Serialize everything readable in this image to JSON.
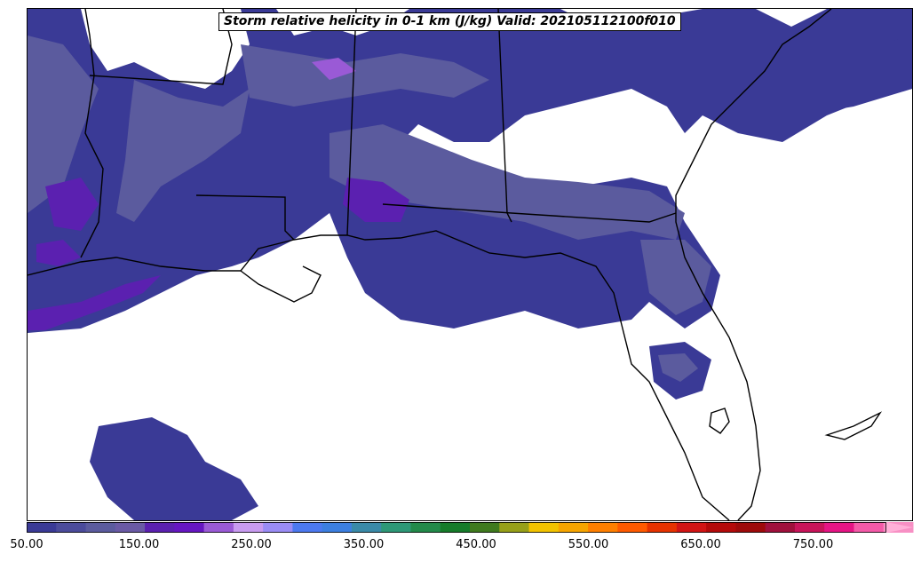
{
  "title": "Storm relative helicity in 0-1 km (J/kg) Valid: 202105112100f010",
  "colorbar": {
    "ticks": [
      "50.00",
      "150.00",
      "250.00",
      "350.00",
      "450.00",
      "550.00",
      "650.00",
      "750.00"
    ],
    "colors": [
      "#3a3a96",
      "#4b4b9b",
      "#5b5b9e",
      "#6a5aa5",
      "#5b20b0",
      "#6616c2",
      "#9a5ad6",
      "#c89bf0",
      "#9a8cf5",
      "#4c79f0",
      "#3c7fe0",
      "#3a8aa8",
      "#2e9877",
      "#238a4a",
      "#167c2a",
      "#3f7a1e",
      "#97a019",
      "#f2c300",
      "#f7a500",
      "#ff7f00",
      "#ff5a00",
      "#e63200",
      "#d21414",
      "#b40a0a",
      "#9e0a0a",
      "#a0103c",
      "#c8145a",
      "#e61485",
      "#f45aa8",
      "#f790c4"
    ],
    "extend": "max",
    "arrow_color": "#ffb0d8"
  },
  "map_style": {
    "background": "#ffffff",
    "boundary_color": "#000000",
    "shading_base": "#3a3a96",
    "shading_mid": "#5b5b9e",
    "shading_high": "#5b20b0",
    "shading_peak": "#9a5ad6"
  }
}
